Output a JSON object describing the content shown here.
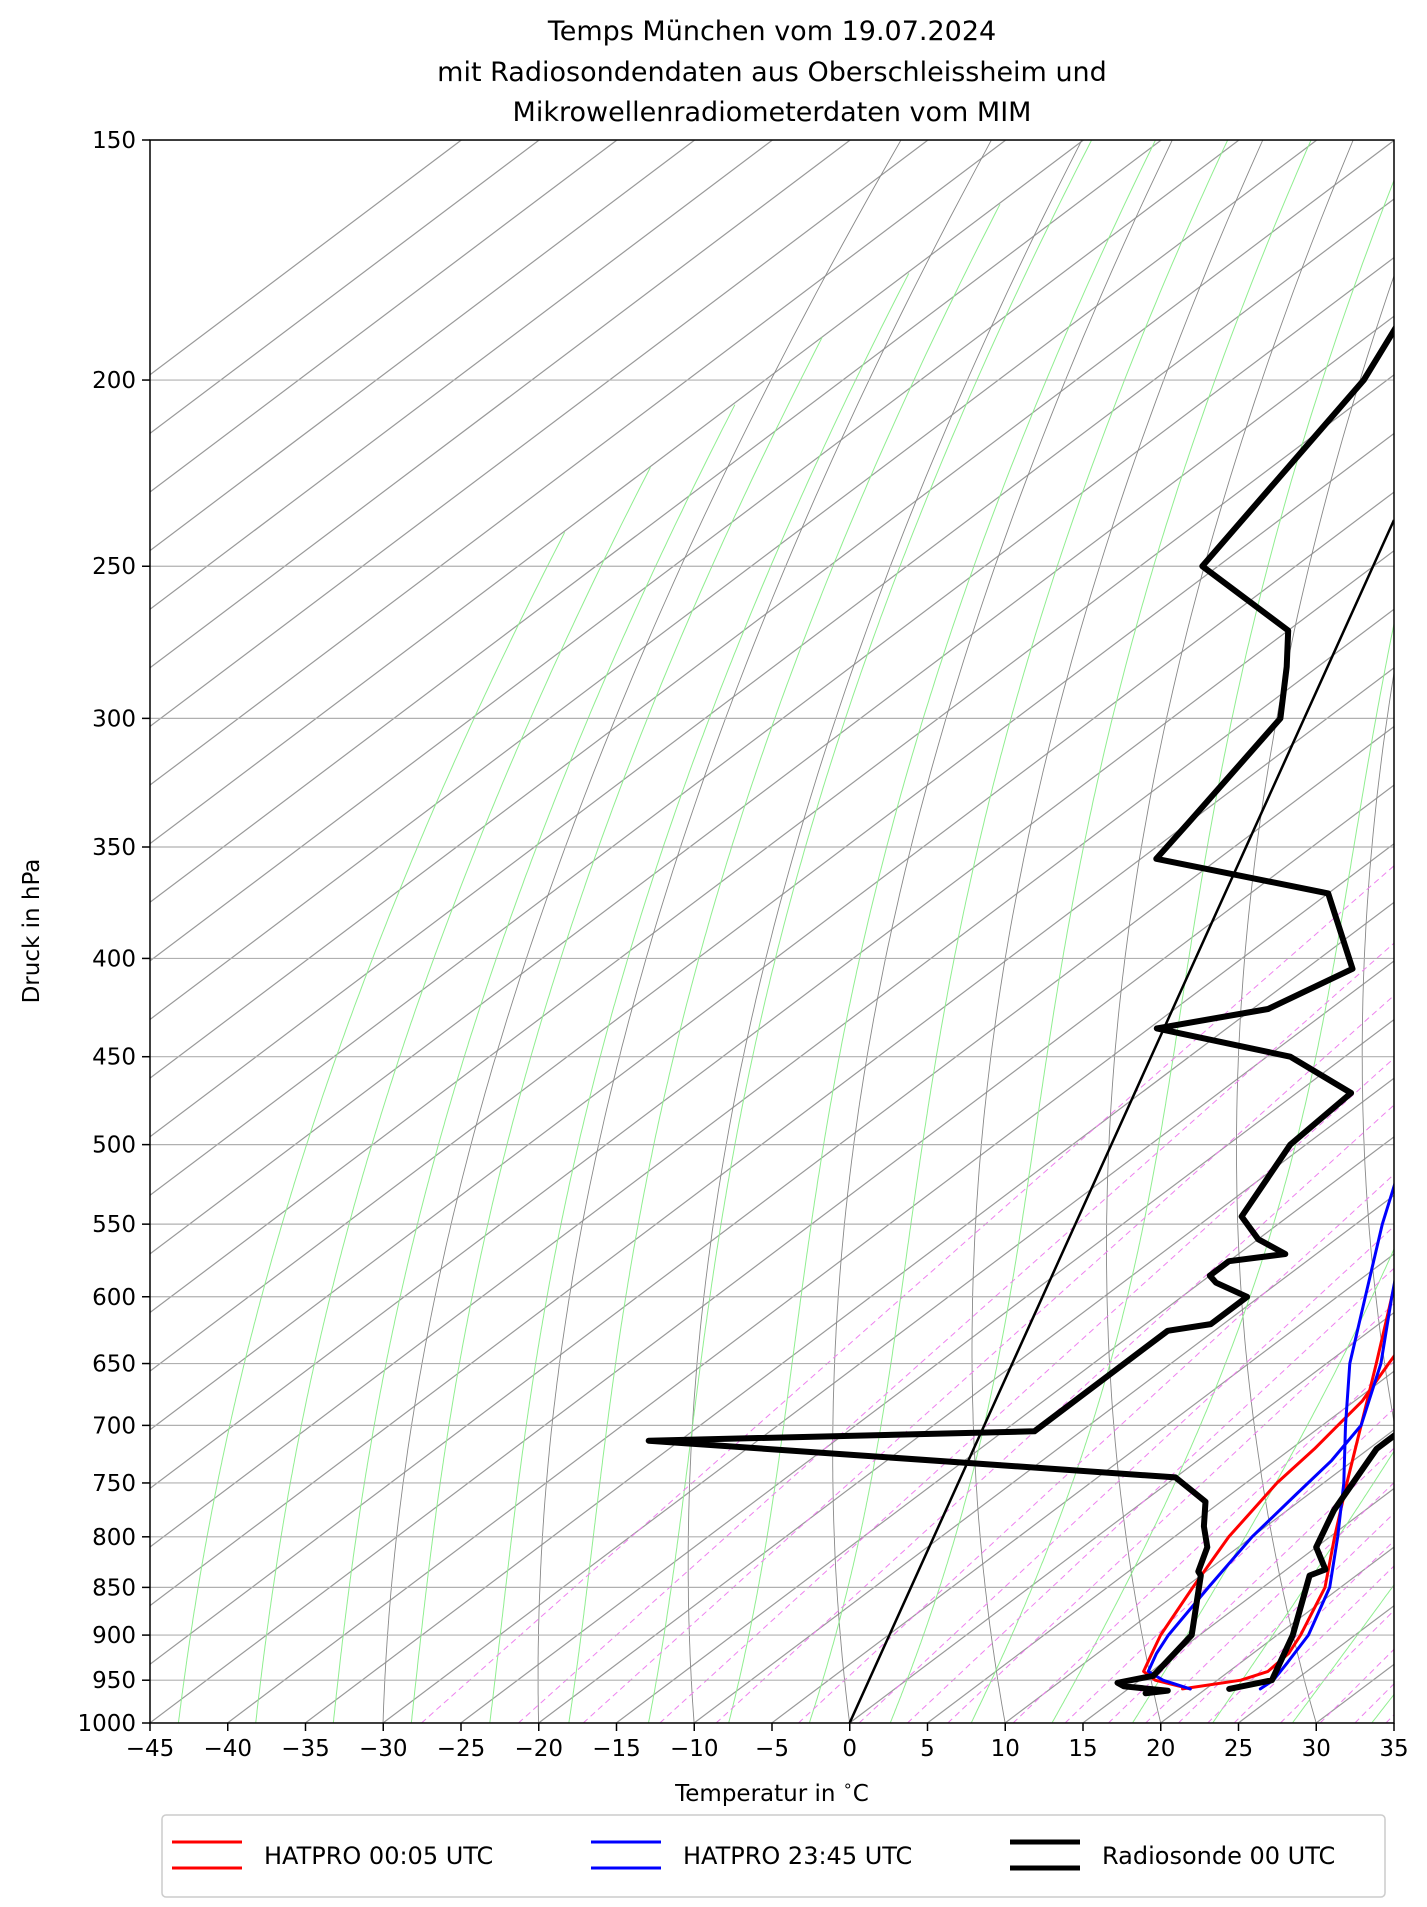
{
  "chart_data": {
    "type": "line",
    "title": [
      "Temps München vom 19.07.2024",
      "mit Radiosondendaten aus Oberschleissheim und",
      "Mikrowellenradiometerdaten vom MIM"
    ],
    "xlabel": "Temperatur in $^\\circ$C",
    "xlabel_text": "Temperatur in ",
    "xlabel_unit": "C",
    "ylabel": "Druck in hPa",
    "xlim": [
      -45,
      35
    ],
    "ylim": [
      1000,
      150
    ],
    "y_scale": "log",
    "skew": "skew-T",
    "xticks": [
      -45,
      -40,
      -35,
      -30,
      -25,
      -20,
      -15,
      -10,
      -5,
      0,
      5,
      10,
      15,
      20,
      25,
      30,
      35
    ],
    "yticks": [
      1000,
      950,
      900,
      850,
      800,
      750,
      700,
      650,
      600,
      550,
      500,
      450,
      400,
      350,
      300,
      250,
      200,
      150
    ],
    "legend_position": "bottom",
    "colors": {
      "hatpro_0005": "#ff0000",
      "hatpro_2345": "#0000ff",
      "radiosonde": "#000000",
      "isotherm": "#999999",
      "dry_adiabat": "#888888",
      "moist_adiabat": "#90ee90",
      "mixing_ratio": "#ee82ee"
    },
    "series": [
      {
        "name": "HATPRO 00:05 UTC",
        "color": "#ff0000",
        "temperature": [
          [
            960,
            18.5
          ],
          [
            950,
            21.5
          ],
          [
            940,
            22.5
          ],
          [
            920,
            22.3
          ],
          [
            900,
            21.5
          ],
          [
            850,
            19.0
          ],
          [
            800,
            15.3
          ],
          [
            750,
            11.5
          ],
          [
            700,
            7.5
          ],
          [
            650,
            3.2
          ],
          [
            600,
            -1.5
          ],
          [
            550,
            -6.5
          ],
          [
            500,
            -12.0
          ],
          [
            450,
            -18.5
          ],
          [
            400,
            -26.0
          ],
          [
            350,
            -34.5
          ],
          [
            300,
            -44.5
          ],
          [
            258,
            -55.0
          ]
        ],
        "dewpoint": [
          [
            960,
            19.0
          ],
          [
            950,
            16.0
          ],
          [
            940,
            14.5
          ],
          [
            920,
            13.5
          ],
          [
            900,
            12.5
          ],
          [
            850,
            10.5
          ],
          [
            800,
            8.5
          ],
          [
            750,
            7.0
          ],
          [
            720,
            6.5
          ],
          [
            700,
            6.0
          ],
          [
            680,
            5.5
          ],
          [
            650,
            4.0
          ],
          [
            620,
            2.5
          ],
          [
            600,
            1.0
          ],
          [
            550,
            -4.5
          ],
          [
            500,
            -10.5
          ],
          [
            450,
            -17.5
          ],
          [
            400,
            -24.5
          ],
          [
            350,
            -33.0
          ],
          [
            300,
            -42.5
          ],
          [
            258,
            -49.5
          ]
        ]
      },
      {
        "name": "HATPRO 23:45 UTC",
        "color": "#0000ff",
        "temperature": [
          [
            960,
            23.5
          ],
          [
            950,
            23.6
          ],
          [
            930,
            23.0
          ],
          [
            900,
            22.0
          ],
          [
            850,
            19.3
          ],
          [
            800,
            15.5
          ],
          [
            750,
            11.3
          ],
          [
            700,
            6.5
          ],
          [
            650,
            1.5
          ],
          [
            600,
            -3.2
          ],
          [
            550,
            -8.3
          ],
          [
            500,
            -13.5
          ],
          [
            450,
            -19.5
          ],
          [
            400,
            -27.0
          ],
          [
            350,
            -36.5
          ],
          [
            300,
            -46.0
          ],
          [
            255,
            -57.5
          ]
        ],
        "dewpoint": [
          [
            960,
            19.0
          ],
          [
            950,
            16.5
          ],
          [
            940,
            14.8
          ],
          [
            920,
            13.8
          ],
          [
            900,
            13.0
          ],
          [
            850,
            11.5
          ],
          [
            800,
            10.0
          ],
          [
            760,
            9.2
          ],
          [
            730,
            8.6
          ],
          [
            700,
            7.5
          ],
          [
            650,
            3.5
          ],
          [
            600,
            -1.5
          ],
          [
            550,
            -6.8
          ],
          [
            500,
            -12.0
          ],
          [
            450,
            -18.5
          ],
          [
            400,
            -25.5
          ],
          [
            350,
            -34.0
          ],
          [
            300,
            -43.5
          ],
          [
            255,
            -50.5
          ]
        ]
      },
      {
        "name": "Radiosonde 00 UTC",
        "color": "#000000",
        "temperature": [
          [
            960,
            21.5
          ],
          [
            950,
            23.5
          ],
          [
            900,
            21.0
          ],
          [
            838,
            17.0
          ],
          [
            832,
            17.5
          ],
          [
            810,
            15.0
          ],
          [
            775,
            13.0
          ],
          [
            720,
            10.5
          ],
          [
            713,
            10.5
          ],
          [
            705,
            10.5
          ],
          [
            650,
            5.5
          ],
          [
            620,
            2.5
          ],
          [
            595,
            1.5
          ],
          [
            570,
            -1.0
          ],
          [
            555,
            -2.8
          ],
          [
            540,
            -4.5
          ],
          [
            505,
            -8.0
          ],
          [
            470,
            -12.0
          ],
          [
            460,
            -12.5
          ],
          [
            450,
            -13.2
          ],
          [
            433,
            -15.0
          ],
          [
            415,
            -17.5
          ],
          [
            405,
            -19.0
          ],
          [
            360,
            -27.0
          ],
          [
            350,
            -28.0
          ],
          [
            300,
            -37.5
          ],
          [
            270,
            -44.5
          ],
          [
            255,
            -48.0
          ],
          [
            250,
            -49.5
          ],
          [
            240,
            -52.0
          ],
          [
            200,
            -61.5
          ],
          [
            190,
            -64.0
          ],
          [
            182,
            -65.5
          ],
          [
            166,
            -71.0
          ],
          [
            156,
            -75.0
          ],
          [
            150,
            -77.5
          ]
        ],
        "dewpoint": [
          [
            965,
            16.5
          ],
          [
            962,
            17.7
          ],
          [
            957,
            14.5
          ],
          [
            953,
            13.8
          ],
          [
            945,
            15.5
          ],
          [
            900,
            14.5
          ],
          [
            838,
            10.0
          ],
          [
            834,
            9.5
          ],
          [
            810,
            8.0
          ],
          [
            790,
            6.0
          ],
          [
            767,
            4.0
          ],
          [
            745,
            0.0
          ],
          [
            713,
            -37.0
          ],
          [
            705,
            -13.0
          ],
          [
            650,
            -13.0
          ],
          [
            625,
            -13.0
          ],
          [
            620,
            -10.8
          ],
          [
            600,
            -10.8
          ],
          [
            590,
            -14.0
          ],
          [
            585,
            -15.0
          ],
          [
            575,
            -15.0
          ],
          [
            570,
            -12.0
          ],
          [
            560,
            -15.0
          ],
          [
            545,
            -18.0
          ],
          [
            500,
            -21.0
          ],
          [
            470,
            -21.5
          ],
          [
            450,
            -28.5
          ],
          [
            435,
            -39.5
          ],
          [
            425,
            -34.0
          ],
          [
            405,
            -32.0
          ],
          [
            370,
            -40.0
          ],
          [
            355,
            -54.0
          ],
          [
            340,
            -55.0
          ],
          [
            300,
            -58.0
          ],
          [
            282,
            -62.0
          ],
          [
            270,
            -65.0
          ],
          [
            250,
            -76.0
          ],
          [
            200,
            -81.5
          ],
          [
            185,
            -84.5
          ],
          [
            180,
            -85.0
          ],
          [
            174,
            -89.0
          ],
          [
            160,
            -90.0
          ]
        ]
      }
    ],
    "straight_line": {
      "from": [
        1000,
        0
      ],
      "to": [
        238,
        75
      ],
      "note_hidden": true
    }
  }
}
